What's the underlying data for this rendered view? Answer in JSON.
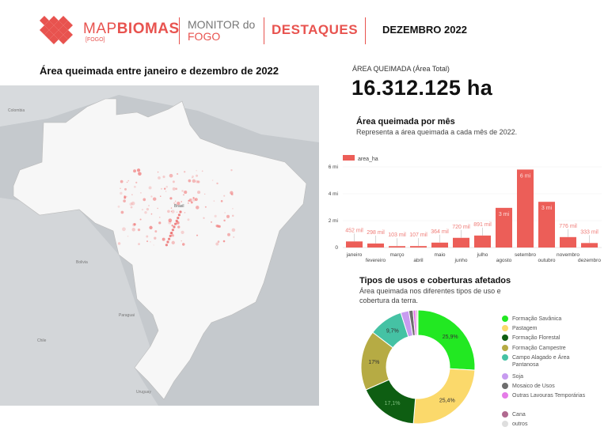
{
  "header": {
    "logo_part1": "MAP",
    "logo_part2": "BIOMAS",
    "logo_sub": "[FOGO]",
    "monitor_line1": "MONITOR do",
    "monitor_line2": "FOGO",
    "section": "DESTAQUES",
    "period": "DEZEMBRO 2022"
  },
  "map": {
    "title": "Área queimada entre janeiro e dezembro de 2022",
    "labels": [
      "Brasil",
      "Bolivia",
      "Paraguai",
      "Chile",
      "Uruguay",
      "Colombia"
    ]
  },
  "kpi": {
    "label": "ÁREA QUEIMADA (Área Total)",
    "value": "16.312.125 ha"
  },
  "monthly": {
    "title": "Área queimada por mês",
    "subtitle": "Representa a área queimada a cada mês de 2022."
  },
  "landuse": {
    "title": "Tipos de usos e coberturas afetados",
    "subtitle_line1": "Área queimada nos diferentes tipos de uso e",
    "subtitle_line2": "cobertura da terra."
  },
  "colors": {
    "brand": "#e8534f",
    "bar": "#ec5e58"
  },
  "chart_data": [
    {
      "type": "bar",
      "title": "Área queimada por mês",
      "legend": "area_ha",
      "legend_position": "top-left",
      "categories": [
        "janeiro",
        "fevereiro",
        "março",
        "abril",
        "maio",
        "junho",
        "julho",
        "agosto",
        "setembro",
        "outubro",
        "novembro",
        "dezembro"
      ],
      "series": [
        {
          "name": "area_ha",
          "values": [
            452000,
            298000,
            103000,
            107000,
            364000,
            720000,
            891000,
            2950000,
            5800000,
            3400000,
            776000,
            333000
          ]
        }
      ],
      "data_labels": [
        "452 mil",
        "298 mil",
        "103 mil",
        "107 mil",
        "364 mil",
        "720 mil",
        "891 mil",
        "3 mi",
        "6 mi",
        "3 mi",
        "776 mil",
        "333 mil"
      ],
      "yticks": [
        "0",
        "2 mi",
        "4 mi",
        "6 mi"
      ],
      "ylim": [
        0,
        6500000
      ],
      "grid": true
    },
    {
      "type": "pie",
      "donut": true,
      "title": "Tipos de usos e coberturas afetados",
      "legend_position": "right",
      "slices": [
        {
          "label": "Formação Savânica",
          "value": 25.9,
          "text": "25,9%",
          "color": "#22e822"
        },
        {
          "label": "Pastagem",
          "value": 25.4,
          "text": "25,4%",
          "color": "#fbd96b"
        },
        {
          "label": "Formação Florestal",
          "value": 17.1,
          "text": "17,1%",
          "color": "#0e5e12"
        },
        {
          "label": "Formação Campestre",
          "value": 17.0,
          "text": "17%",
          "color": "#b6ab44"
        },
        {
          "label": "Campo Alagado e Área Pantanosa",
          "value": 9.7,
          "text": "9,7%",
          "color": "#45c2a4"
        },
        {
          "label": "Soja",
          "value": 2.3,
          "text": "",
          "color": "#c79bf0"
        },
        {
          "label": "Mosaico de Usos",
          "value": 1.2,
          "text": "",
          "color": "#6e6e6e"
        },
        {
          "label": "Outras Lavouras Temporárias",
          "value": 0.8,
          "text": "",
          "color": "#e57ce8"
        },
        {
          "label": "Cana",
          "value": 0.4,
          "text": "",
          "color": "#b0698f"
        },
        {
          "label": "outros",
          "value": 0.2,
          "text": "",
          "color": "#dedede"
        }
      ]
    }
  ]
}
